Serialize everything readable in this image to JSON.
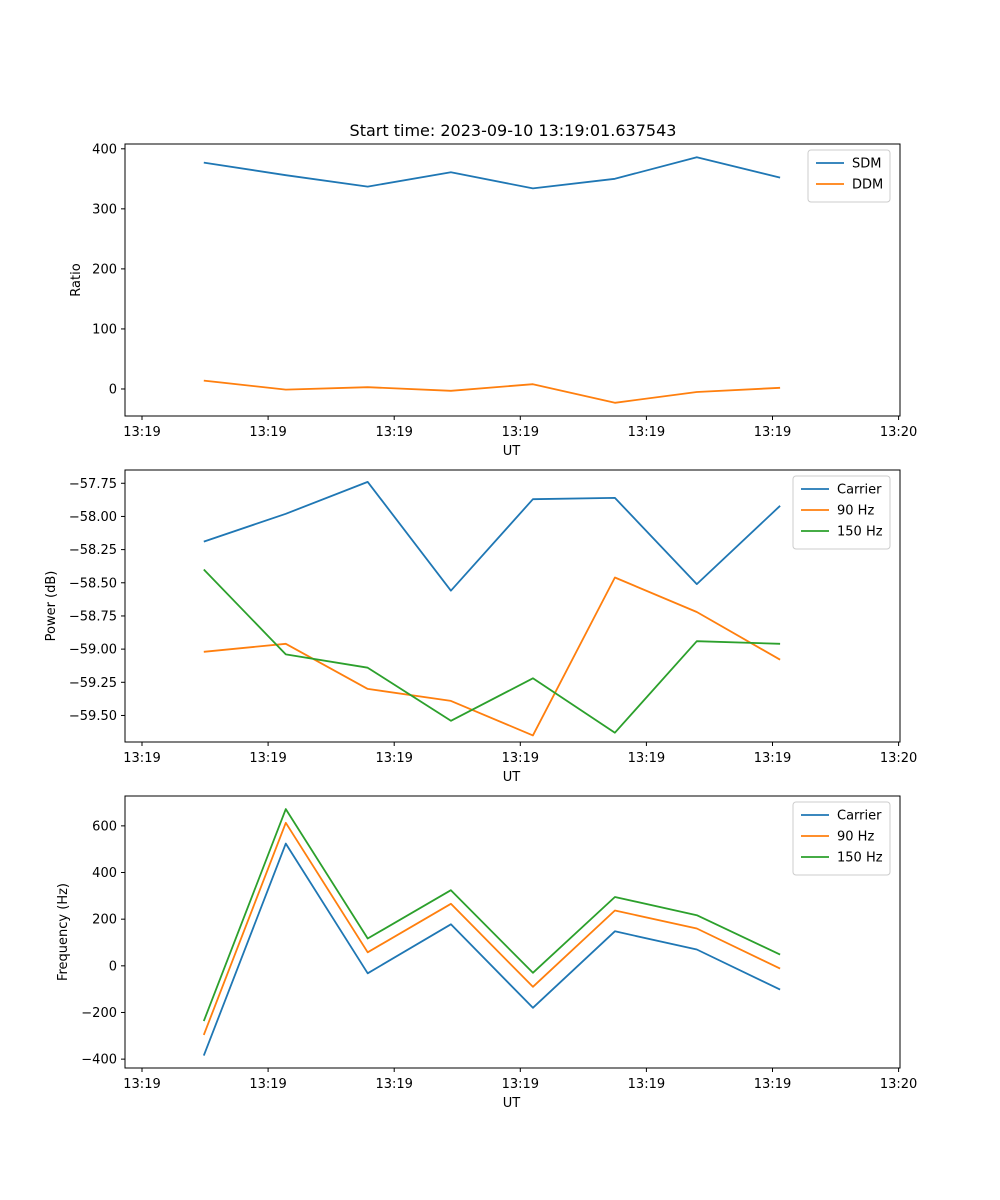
{
  "figure_title": "Start time: 2023-09-10 13:19:01.637543",
  "chart_data": [
    {
      "type": "line",
      "title": "Start time: 2023-09-10 13:19:01.637543",
      "xlabel": "UT",
      "ylabel": "Ratio",
      "xlim": [
        0,
        6.2
      ],
      "ylim": [
        -45,
        408
      ],
      "xticks": [
        {
          "v": 0.0,
          "label": "13:19"
        },
        {
          "v": 1.0,
          "label": "13:19"
        },
        {
          "v": 2.0,
          "label": "13:19"
        },
        {
          "v": 3.0,
          "label": "13:19"
        },
        {
          "v": 4.0,
          "label": "13:19"
        },
        {
          "v": 5.0,
          "label": "13:19"
        },
        {
          "v": 6.0,
          "label": "13:20"
        }
      ],
      "yticks": [
        {
          "v": 0,
          "label": "0"
        },
        {
          "v": 100,
          "label": "100"
        },
        {
          "v": 200,
          "label": "200"
        },
        {
          "v": 300,
          "label": "300"
        },
        {
          "v": 400,
          "label": "400"
        }
      ],
      "legend": "top-right",
      "x": [
        0.49,
        1.14,
        1.79,
        2.45,
        3.1,
        3.75,
        4.4,
        5.06
      ],
      "series": [
        {
          "name": "SDM",
          "color": "#1f77b4",
          "values": [
            377,
            356,
            337,
            361,
            334,
            350,
            386,
            352
          ]
        },
        {
          "name": "DDM",
          "color": "#ff7f0e",
          "values": [
            14,
            -1,
            3,
            -3,
            8,
            -23,
            -5,
            2
          ]
        }
      ]
    },
    {
      "type": "line",
      "title": "",
      "xlabel": "UT",
      "ylabel": "Power (dB)",
      "xlim": [
        0,
        6.2
      ],
      "ylim": [
        -59.7,
        -57.65
      ],
      "xticks": [
        {
          "v": 0.0,
          "label": "13:19"
        },
        {
          "v": 1.0,
          "label": "13:19"
        },
        {
          "v": 2.0,
          "label": "13:19"
        },
        {
          "v": 3.0,
          "label": "13:19"
        },
        {
          "v": 4.0,
          "label": "13:19"
        },
        {
          "v": 5.0,
          "label": "13:19"
        },
        {
          "v": 6.0,
          "label": "13:20"
        }
      ],
      "yticks": [
        {
          "v": -57.75,
          "label": "−57.75"
        },
        {
          "v": -58.0,
          "label": "−58.00"
        },
        {
          "v": -58.25,
          "label": "−58.25"
        },
        {
          "v": -58.5,
          "label": "−58.50"
        },
        {
          "v": -58.75,
          "label": "−58.75"
        },
        {
          "v": -59.0,
          "label": "−59.00"
        },
        {
          "v": -59.25,
          "label": "−59.25"
        },
        {
          "v": -59.5,
          "label": "−59.50"
        }
      ],
      "legend": "top-right",
      "x": [
        0.49,
        1.14,
        1.79,
        2.45,
        3.1,
        3.75,
        4.4,
        5.06
      ],
      "series": [
        {
          "name": "Carrier",
          "color": "#1f77b4",
          "values": [
            -58.19,
            -57.98,
            -57.74,
            -58.56,
            -57.87,
            -57.86,
            -58.51,
            -57.92
          ]
        },
        {
          "name": "90 Hz",
          "color": "#ff7f0e",
          "values": [
            -59.02,
            -58.96,
            -59.3,
            -59.39,
            -59.65,
            -58.46,
            -58.72,
            -59.08
          ]
        },
        {
          "name": "150 Hz",
          "color": "#2ca02c",
          "values": [
            -58.4,
            -59.04,
            -59.14,
            -59.54,
            -59.22,
            -59.63,
            -58.94,
            -58.96
          ]
        }
      ]
    },
    {
      "type": "line",
      "title": "",
      "xlabel": "UT",
      "ylabel": "Frequency (Hz)",
      "xlim": [
        0,
        6.2
      ],
      "ylim": [
        -438,
        728
      ],
      "xticks": [
        {
          "v": 0.0,
          "label": "13:19"
        },
        {
          "v": 1.0,
          "label": "13:19"
        },
        {
          "v": 2.0,
          "label": "13:19"
        },
        {
          "v": 3.0,
          "label": "13:19"
        },
        {
          "v": 4.0,
          "label": "13:19"
        },
        {
          "v": 5.0,
          "label": "13:19"
        },
        {
          "v": 6.0,
          "label": "13:20"
        }
      ],
      "yticks": [
        {
          "v": -400,
          "label": "−400"
        },
        {
          "v": -200,
          "label": "−200"
        },
        {
          "v": 0,
          "label": "0"
        },
        {
          "v": 200,
          "label": "200"
        },
        {
          "v": 400,
          "label": "400"
        },
        {
          "v": 600,
          "label": "600"
        }
      ],
      "legend": "top-right",
      "x": [
        0.49,
        1.14,
        1.79,
        2.45,
        3.1,
        3.75,
        4.4,
        5.06
      ],
      "series": [
        {
          "name": "Carrier",
          "color": "#1f77b4",
          "values": [
            -385,
            524,
            -32,
            178,
            -180,
            148,
            70,
            -102
          ]
        },
        {
          "name": "90 Hz",
          "color": "#ff7f0e",
          "values": [
            -296,
            613,
            58,
            266,
            -90,
            237,
            160,
            -12
          ]
        },
        {
          "name": "150 Hz",
          "color": "#2ca02c",
          "values": [
            -237,
            672,
            117,
            324,
            -30,
            295,
            217,
            48
          ]
        }
      ]
    }
  ]
}
